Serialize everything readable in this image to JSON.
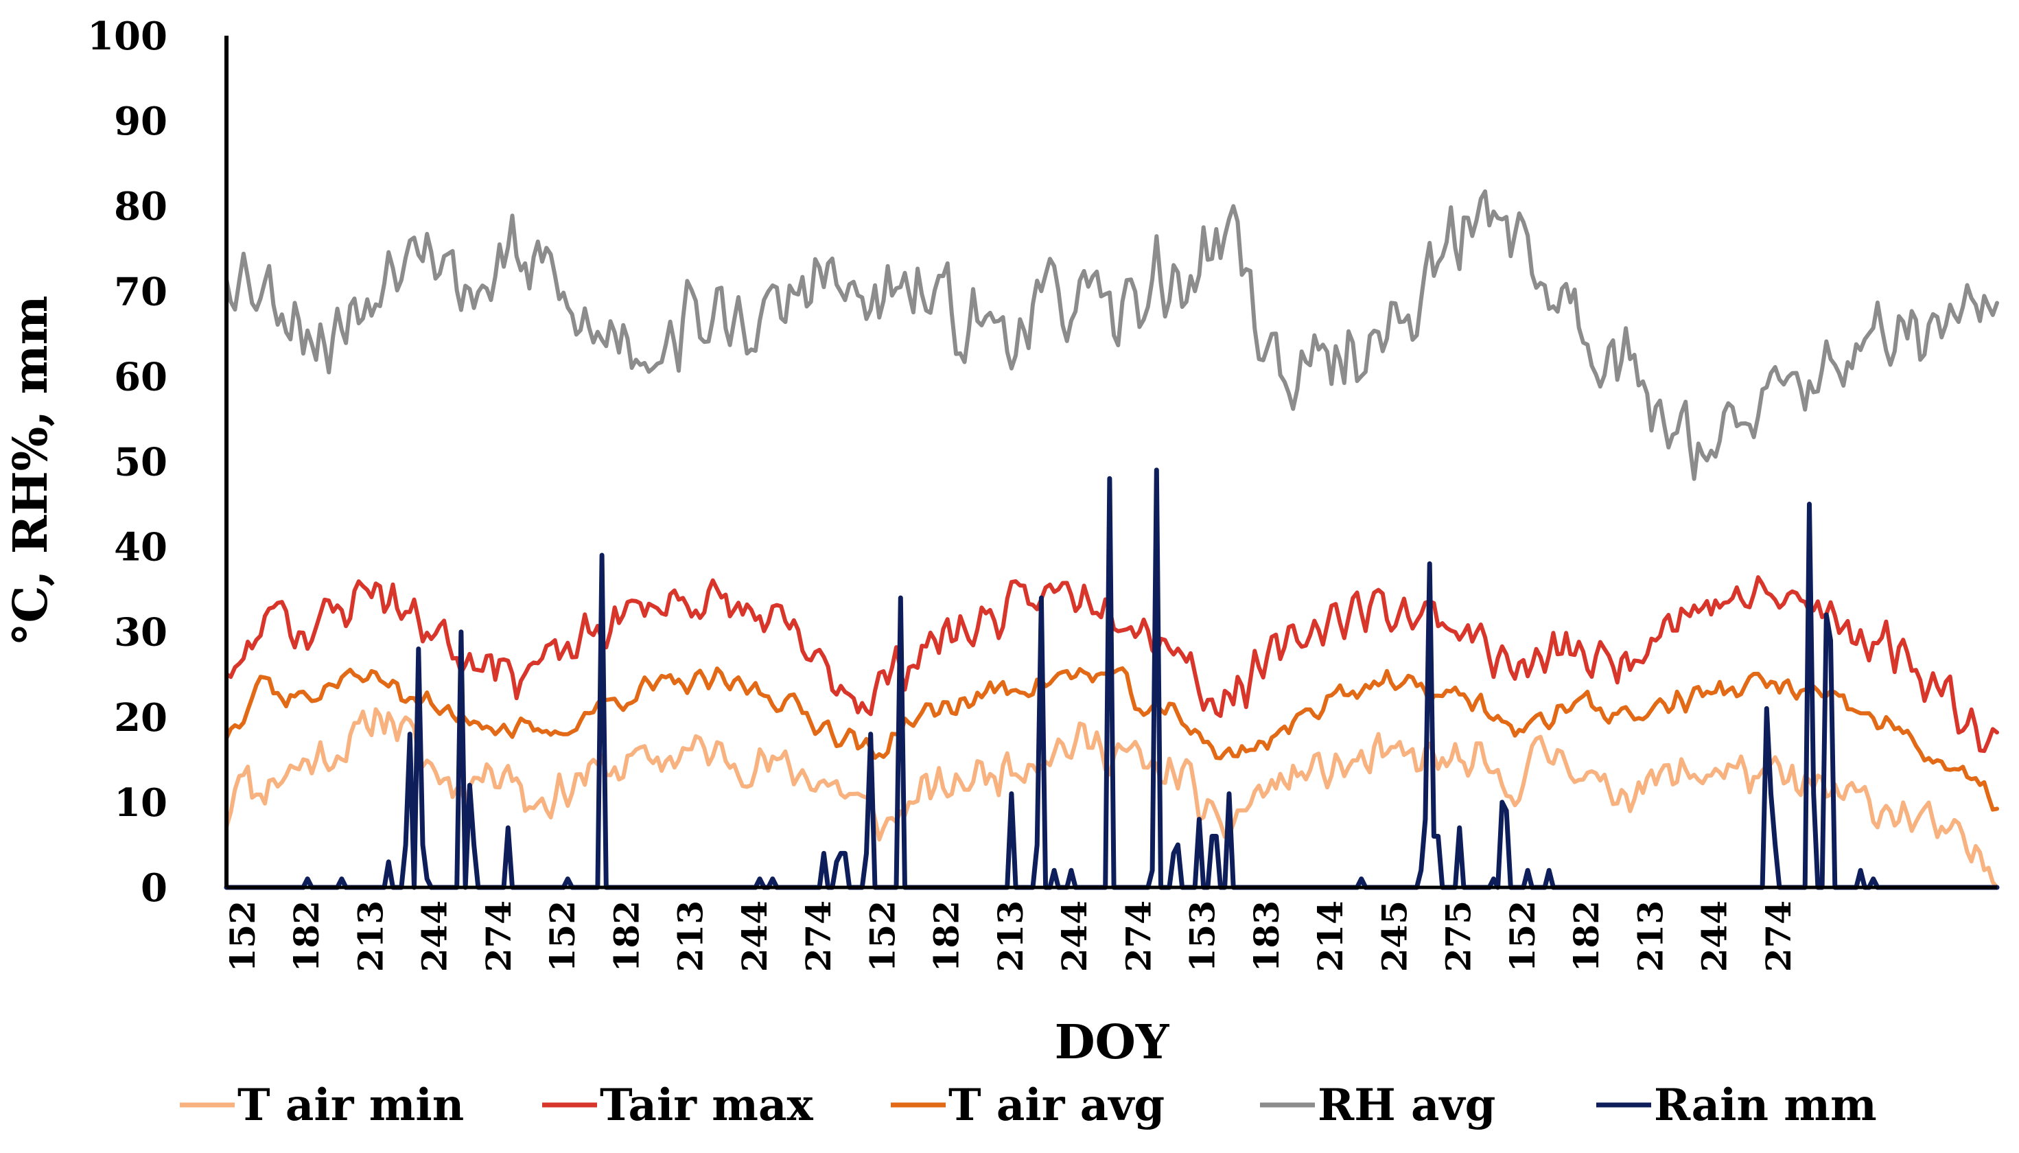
{
  "chart_data": {
    "type": "line",
    "title": "",
    "xlabel": "DOY",
    "ylabel": "°C, RH%, mm",
    "ylim": [
      0,
      100
    ],
    "yticks": [
      0,
      10,
      20,
      30,
      40,
      50,
      60,
      70,
      80,
      90,
      100
    ],
    "xlim": [
      0,
      415
    ],
    "grid": false,
    "legend_position": "bottom",
    "xtick_labels": [
      "152",
      "182",
      "213",
      "244",
      "274",
      "152",
      "182",
      "213",
      "244",
      "274",
      "152",
      "182",
      "213",
      "244",
      "274",
      "153",
      "183",
      "214",
      "245",
      "275",
      "152",
      "182",
      "213",
      "244",
      "274"
    ],
    "xtick_positions": [
      4,
      19,
      34,
      49,
      64,
      79,
      94,
      109,
      124,
      139,
      154,
      169,
      184,
      199,
      214,
      229,
      244,
      259,
      274,
      289,
      304,
      319,
      334,
      349,
      364
    ],
    "series": [
      {
        "name": "T air min",
        "color": "#F8B27F",
        "width": 6,
        "anchors": [
          [
            0,
            8
          ],
          [
            3,
            15
          ],
          [
            6,
            11
          ],
          [
            12,
            13
          ],
          [
            20,
            15
          ],
          [
            30,
            17
          ],
          [
            36,
            21
          ],
          [
            42,
            18
          ],
          [
            48,
            14
          ],
          [
            54,
            12
          ],
          [
            60,
            13
          ],
          [
            66,
            15
          ],
          [
            70,
            10
          ],
          [
            78,
            11
          ],
          [
            83,
            13
          ],
          [
            90,
            14
          ],
          [
            100,
            15
          ],
          [
            110,
            16
          ],
          [
            120,
            15
          ],
          [
            130,
            14
          ],
          [
            138,
            13
          ],
          [
            146,
            11
          ],
          [
            150,
            9
          ],
          [
            155,
            7
          ],
          [
            160,
            10
          ],
          [
            170,
            12
          ],
          [
            182,
            14
          ],
          [
            192,
            16
          ],
          [
            200,
            17
          ],
          [
            210,
            16
          ],
          [
            218,
            13
          ],
          [
            224,
            14
          ],
          [
            228,
            10
          ],
          [
            232,
            6
          ],
          [
            236,
            8
          ],
          [
            242,
            11
          ],
          [
            250,
            13
          ],
          [
            260,
            14
          ],
          [
            270,
            15
          ],
          [
            282,
            15
          ],
          [
            294,
            14
          ],
          [
            300,
            11
          ],
          [
            306,
            15
          ],
          [
            314,
            16
          ],
          [
            322,
            11
          ],
          [
            330,
            12
          ],
          [
            340,
            13
          ],
          [
            350,
            14
          ],
          [
            360,
            13
          ],
          [
            368,
            12
          ],
          [
            376,
            11
          ],
          [
            384,
            10
          ],
          [
            392,
            9
          ],
          [
            400,
            7
          ],
          [
            406,
            5
          ],
          [
            412,
            3
          ],
          [
            415,
            2
          ]
        ],
        "seed": 11,
        "amp": 3.2
      },
      {
        "name": "Tair max",
        "color": "#D8362B",
        "width": 6,
        "anchors": [
          [
            0,
            26
          ],
          [
            4,
            26
          ],
          [
            8,
            30
          ],
          [
            12,
            35
          ],
          [
            16,
            30
          ],
          [
            22,
            31
          ],
          [
            28,
            33
          ],
          [
            34,
            36
          ],
          [
            40,
            33
          ],
          [
            46,
            31
          ],
          [
            50,
            30
          ],
          [
            56,
            27
          ],
          [
            62,
            28
          ],
          [
            66,
            25
          ],
          [
            72,
            26
          ],
          [
            78,
            27
          ],
          [
            84,
            29
          ],
          [
            90,
            31
          ],
          [
            98,
            33
          ],
          [
            108,
            34
          ],
          [
            118,
            33
          ],
          [
            128,
            31
          ],
          [
            134,
            29
          ],
          [
            138,
            26
          ],
          [
            144,
            24
          ],
          [
            150,
            22
          ],
          [
            158,
            26
          ],
          [
            166,
            29
          ],
          [
            176,
            31
          ],
          [
            186,
            33
          ],
          [
            196,
            35
          ],
          [
            206,
            34
          ],
          [
            212,
            32
          ],
          [
            216,
            30
          ],
          [
            222,
            29
          ],
          [
            226,
            26
          ],
          [
            230,
            22
          ],
          [
            236,
            23
          ],
          [
            242,
            25
          ],
          [
            250,
            29
          ],
          [
            260,
            32
          ],
          [
            270,
            33
          ],
          [
            282,
            32
          ],
          [
            292,
            30
          ],
          [
            298,
            27
          ],
          [
            304,
            25
          ],
          [
            310,
            27
          ],
          [
            316,
            28
          ],
          [
            322,
            26
          ],
          [
            328,
            27
          ],
          [
            336,
            31
          ],
          [
            346,
            33
          ],
          [
            356,
            34
          ],
          [
            366,
            34
          ],
          [
            374,
            32
          ],
          [
            382,
            30
          ],
          [
            392,
            28
          ],
          [
            400,
            24
          ],
          [
            406,
            21
          ],
          [
            412,
            19
          ],
          [
            415,
            17
          ]
        ],
        "seed": 23,
        "amp": 3.4
      },
      {
        "name": "T air avg",
        "color": "#E26A17",
        "width": 6,
        "anchors": [
          [
            0,
            18
          ],
          [
            4,
            21
          ],
          [
            8,
            25
          ],
          [
            14,
            22
          ],
          [
            22,
            23
          ],
          [
            30,
            25
          ],
          [
            38,
            24
          ],
          [
            46,
            22
          ],
          [
            52,
            20
          ],
          [
            58,
            20
          ],
          [
            64,
            19
          ],
          [
            72,
            18
          ],
          [
            78,
            18
          ],
          [
            86,
            21
          ],
          [
            96,
            23
          ],
          [
            106,
            24
          ],
          [
            116,
            24
          ],
          [
            126,
            23
          ],
          [
            134,
            21
          ],
          [
            140,
            19
          ],
          [
            148,
            17
          ],
          [
            152,
            15
          ],
          [
            158,
            19
          ],
          [
            168,
            21
          ],
          [
            180,
            23
          ],
          [
            190,
            24
          ],
          [
            200,
            25
          ],
          [
            208,
            25
          ],
          [
            212,
            23
          ],
          [
            216,
            20
          ],
          [
            222,
            21
          ],
          [
            228,
            18
          ],
          [
            234,
            15
          ],
          [
            242,
            17
          ],
          [
            250,
            19
          ],
          [
            260,
            23
          ],
          [
            270,
            24
          ],
          [
            282,
            23
          ],
          [
            292,
            22
          ],
          [
            298,
            20
          ],
          [
            304,
            18
          ],
          [
            310,
            20
          ],
          [
            316,
            22
          ],
          [
            322,
            21
          ],
          [
            330,
            20
          ],
          [
            340,
            22
          ],
          [
            350,
            23
          ],
          [
            360,
            24
          ],
          [
            370,
            23
          ],
          [
            380,
            21
          ],
          [
            390,
            19
          ],
          [
            398,
            16
          ],
          [
            404,
            14
          ],
          [
            410,
            12
          ],
          [
            415,
            10
          ]
        ],
        "seed": 37,
        "amp": 1.8
      },
      {
        "name": "RH avg",
        "color": "#8C8C8C",
        "width": 6,
        "anchors": [
          [
            0,
            73
          ],
          [
            6,
            72
          ],
          [
            10,
            70
          ],
          [
            16,
            68
          ],
          [
            22,
            64
          ],
          [
            28,
            66
          ],
          [
            34,
            70
          ],
          [
            40,
            74
          ],
          [
            44,
            80
          ],
          [
            48,
            76
          ],
          [
            54,
            71
          ],
          [
            60,
            70
          ],
          [
            66,
            75
          ],
          [
            70,
            72
          ],
          [
            74,
            73
          ],
          [
            80,
            68
          ],
          [
            86,
            64
          ],
          [
            92,
            66
          ],
          [
            98,
            63
          ],
          [
            104,
            65
          ],
          [
            110,
            67
          ],
          [
            116,
            66
          ],
          [
            122,
            67
          ],
          [
            128,
            66
          ],
          [
            134,
            70
          ],
          [
            140,
            72
          ],
          [
            146,
            69
          ],
          [
            152,
            68
          ],
          [
            160,
            70
          ],
          [
            168,
            68
          ],
          [
            176,
            66
          ],
          [
            184,
            66
          ],
          [
            192,
            68
          ],
          [
            200,
            70
          ],
          [
            206,
            66
          ],
          [
            212,
            68
          ],
          [
            218,
            72
          ],
          [
            224,
            70
          ],
          [
            230,
            74
          ],
          [
            236,
            78
          ],
          [
            242,
            66
          ],
          [
            248,
            60
          ],
          [
            254,
            60
          ],
          [
            260,
            62
          ],
          [
            266,
            64
          ],
          [
            272,
            65
          ],
          [
            278,
            68
          ],
          [
            284,
            73
          ],
          [
            290,
            77
          ],
          [
            296,
            80
          ],
          [
            300,
            80
          ],
          [
            306,
            72
          ],
          [
            312,
            70
          ],
          [
            318,
            66
          ],
          [
            324,
            63
          ],
          [
            330,
            60
          ],
          [
            336,
            56
          ],
          [
            342,
            54
          ],
          [
            348,
            52
          ],
          [
            354,
            53
          ],
          [
            360,
            56
          ],
          [
            366,
            58
          ],
          [
            372,
            60
          ],
          [
            378,
            62
          ],
          [
            384,
            64
          ],
          [
            390,
            63
          ],
          [
            396,
            66
          ],
          [
            402,
            65
          ],
          [
            408,
            66
          ],
          [
            412,
            68
          ],
          [
            415,
            70
          ]
        ],
        "seed": 53,
        "amp": 6.0
      },
      {
        "name": "Rain mm",
        "color": "#0D1E5A",
        "width": 7,
        "spikes": [
          [
            19,
            1
          ],
          [
            27,
            1
          ],
          [
            38,
            3
          ],
          [
            42,
            5
          ],
          [
            43,
            18
          ],
          [
            45,
            28
          ],
          [
            46,
            5
          ],
          [
            47,
            1
          ],
          [
            55,
            30
          ],
          [
            57,
            12
          ],
          [
            58,
            5
          ],
          [
            66,
            7
          ],
          [
            80,
            1
          ],
          [
            88,
            39
          ],
          [
            125,
            1
          ],
          [
            128,
            1
          ],
          [
            140,
            4
          ],
          [
            143,
            3
          ],
          [
            144,
            4
          ],
          [
            145,
            4
          ],
          [
            150,
            4
          ],
          [
            151,
            18
          ],
          [
            158,
            34
          ],
          [
            184,
            11
          ],
          [
            190,
            5
          ],
          [
            191,
            34
          ],
          [
            194,
            2
          ],
          [
            198,
            2
          ],
          [
            207,
            48
          ],
          [
            217,
            2
          ],
          [
            218,
            49
          ],
          [
            222,
            4
          ],
          [
            223,
            5
          ],
          [
            228,
            8
          ],
          [
            231,
            6
          ],
          [
            232,
            6
          ],
          [
            235,
            11
          ],
          [
            266,
            1
          ],
          [
            280,
            2
          ],
          [
            281,
            8
          ],
          [
            282,
            38
          ],
          [
            283,
            6
          ],
          [
            284,
            6
          ],
          [
            289,
            7
          ],
          [
            297,
            1
          ],
          [
            299,
            10
          ],
          [
            300,
            9
          ],
          [
            305,
            2
          ],
          [
            310,
            2
          ],
          [
            361,
            21
          ],
          [
            362,
            11
          ],
          [
            363,
            5
          ],
          [
            371,
            45
          ],
          [
            372,
            11
          ],
          [
            375,
            32
          ],
          [
            376,
            29
          ],
          [
            383,
            2
          ],
          [
            386,
            1
          ]
        ]
      }
    ]
  }
}
